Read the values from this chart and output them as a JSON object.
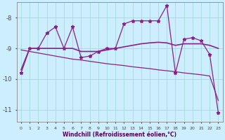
{
  "hours": [
    0,
    1,
    2,
    3,
    4,
    5,
    6,
    7,
    8,
    9,
    10,
    11,
    12,
    13,
    14,
    15,
    16,
    17,
    18,
    19,
    20,
    21,
    22,
    23
  ],
  "windchill": [
    -9.8,
    -9.0,
    -9.0,
    -8.5,
    -8.3,
    -9.0,
    -8.3,
    -9.3,
    -9.25,
    -9.1,
    -9.0,
    -9.0,
    -8.2,
    -8.1,
    -8.1,
    -8.1,
    -8.1,
    -7.6,
    -9.8,
    -8.7,
    -8.65,
    -8.75,
    -9.2,
    -11.1
  ],
  "smooth": [
    -9.7,
    -9.0,
    -9.0,
    -9.0,
    -9.0,
    -9.0,
    -9.0,
    -9.1,
    -9.1,
    -9.1,
    -9.05,
    -9.0,
    -8.95,
    -8.9,
    -8.85,
    -8.82,
    -8.8,
    -8.82,
    -8.9,
    -8.85,
    -8.85,
    -8.85,
    -8.9,
    -9.0
  ],
  "trend": [
    -9.05,
    -9.1,
    -9.15,
    -9.2,
    -9.25,
    -9.3,
    -9.35,
    -9.38,
    -9.42,
    -9.46,
    -9.5,
    -9.53,
    -9.56,
    -9.6,
    -9.63,
    -9.66,
    -9.7,
    -9.73,
    -9.76,
    -9.8,
    -9.83,
    -9.86,
    -9.9,
    -10.7
  ],
  "line_color": "#882288",
  "bg_color": "#cceeff",
  "grid_color": "#aadddd",
  "xlabel": "Windchill (Refroidissement éolien,°C)",
  "ylim": [
    -11.4,
    -7.5
  ],
  "xlim": [
    -0.5,
    23.5
  ],
  "yticks": [
    -8,
    -9,
    -10,
    -11
  ],
  "xticks": [
    0,
    1,
    2,
    3,
    4,
    5,
    6,
    7,
    8,
    9,
    10,
    11,
    12,
    13,
    14,
    15,
    16,
    17,
    18,
    19,
    20,
    21,
    22,
    23
  ]
}
